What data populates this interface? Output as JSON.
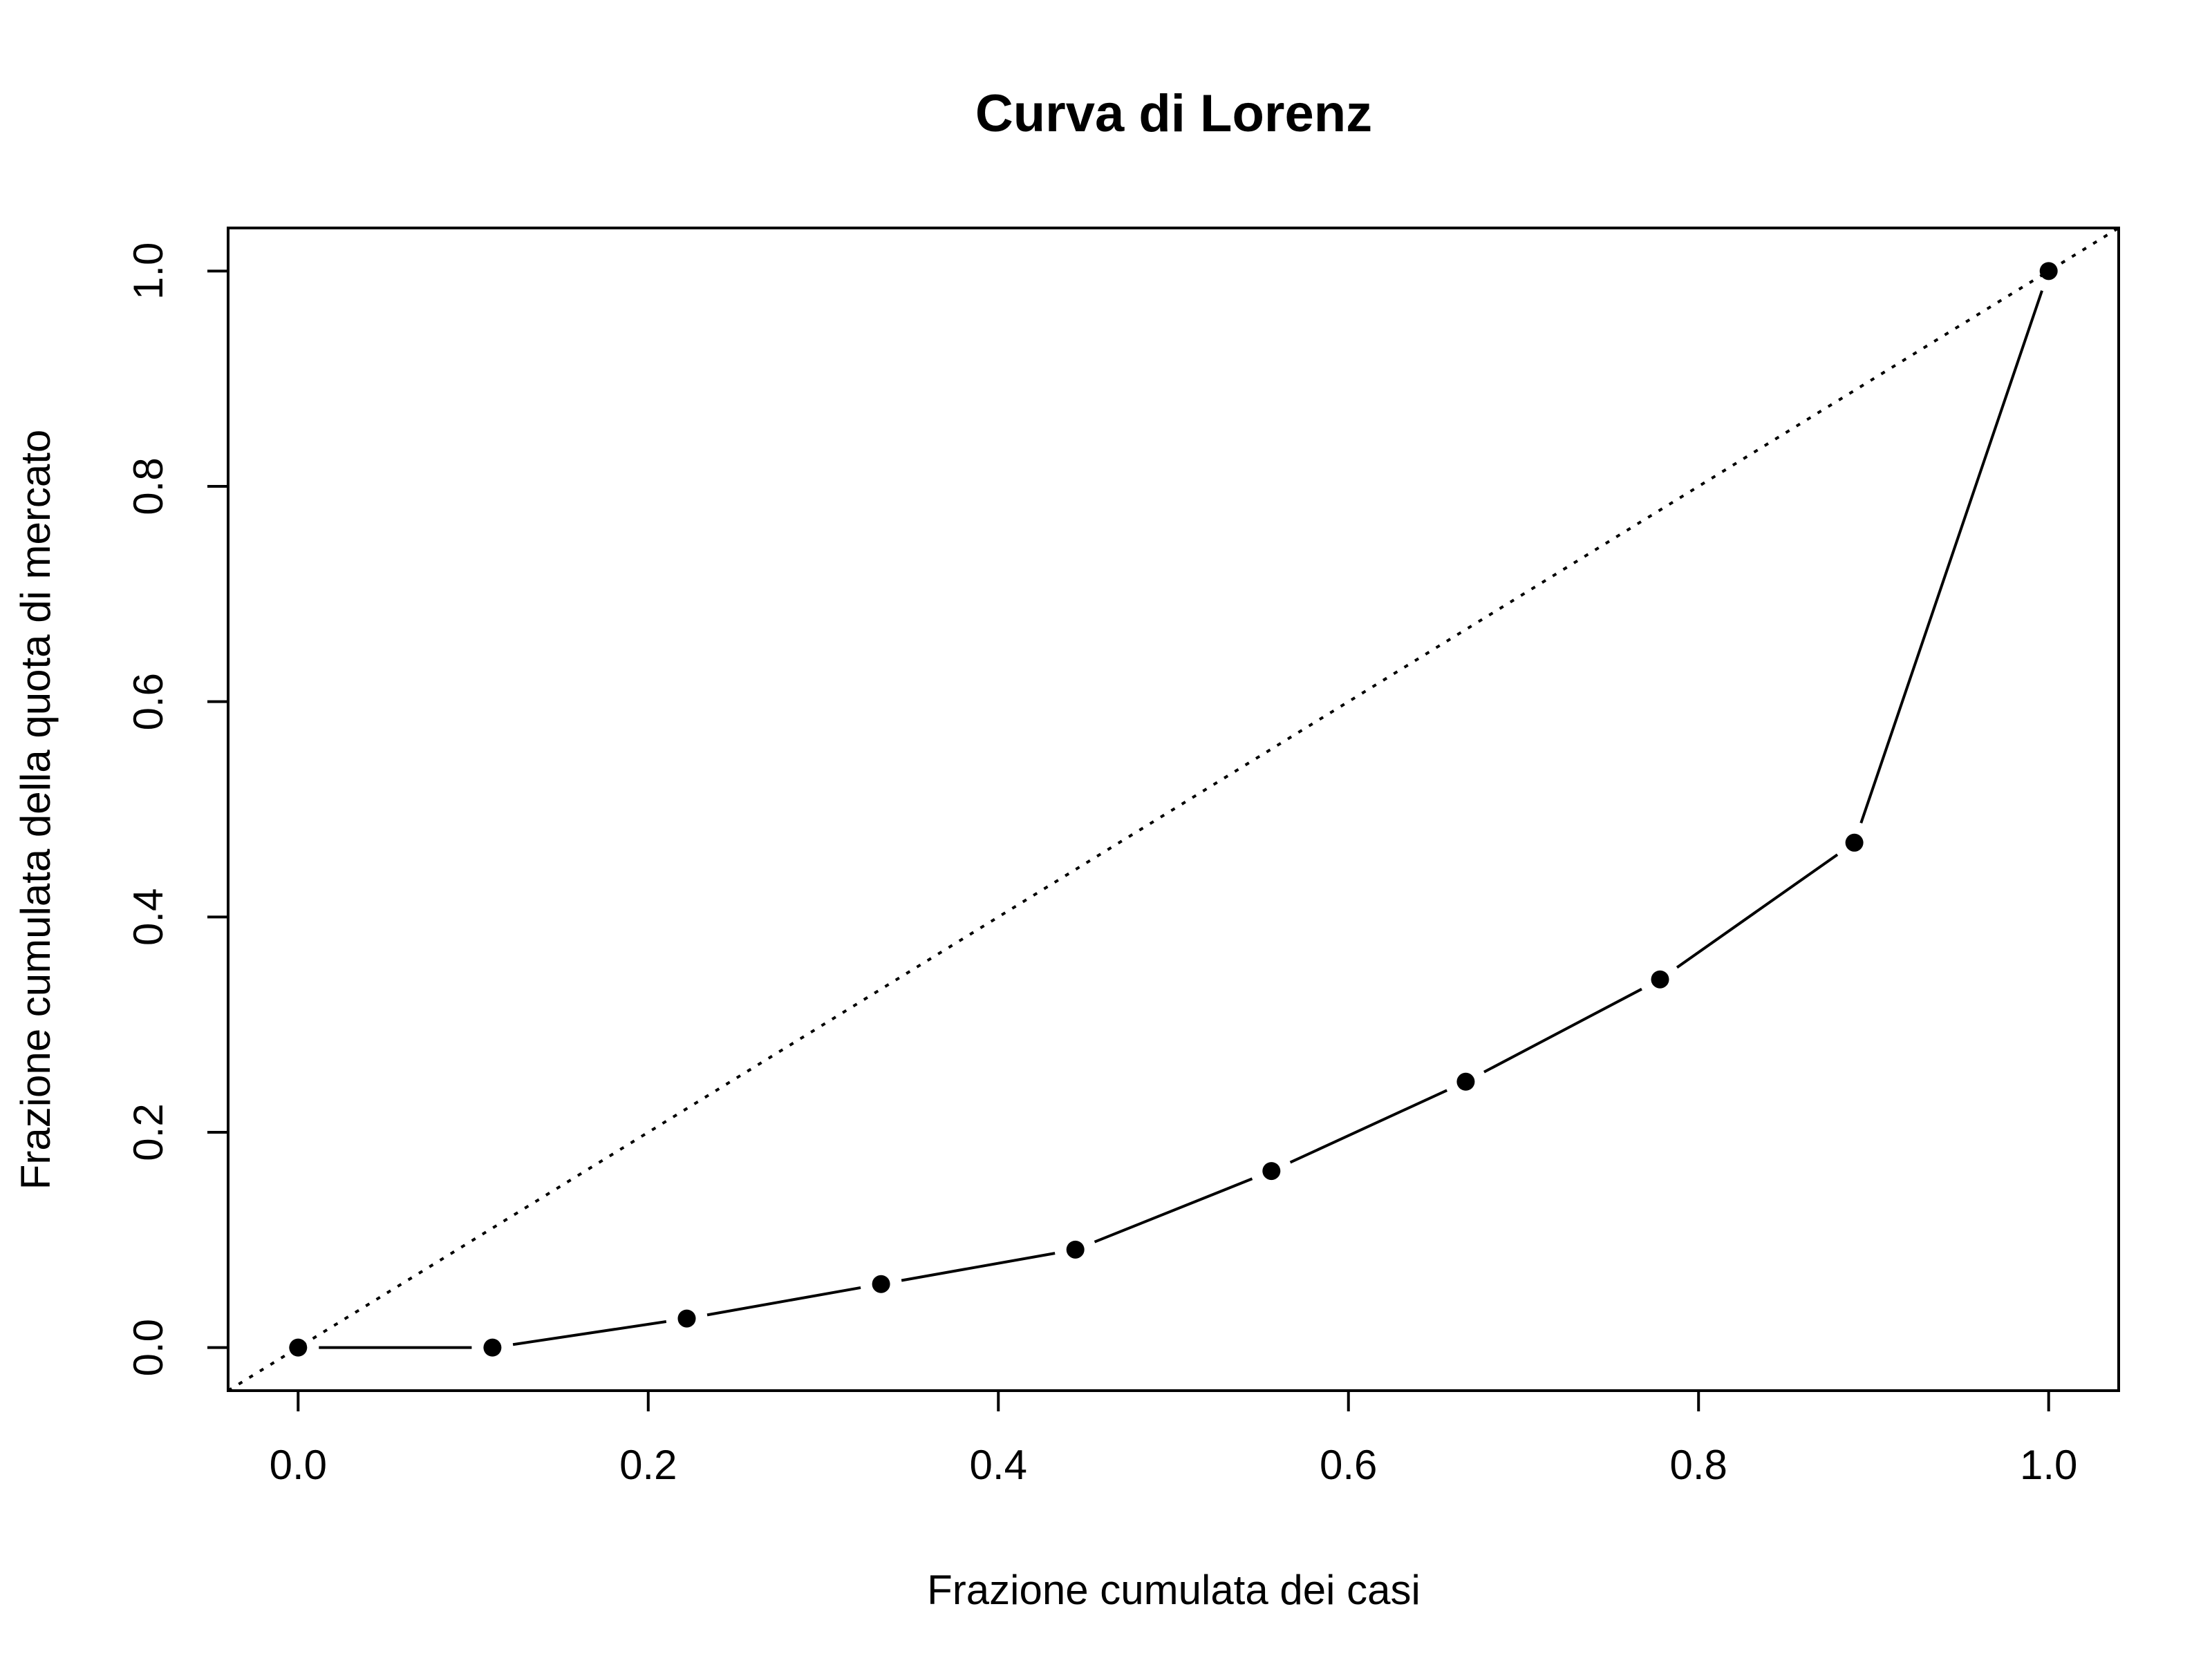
{
  "chart_data": {
    "type": "line",
    "title": "Curva di Lorenz",
    "xlabel": "Frazione cumulata dei casi",
    "ylabel": "Frazione cumulata della quota di mercato",
    "xlim": [
      -0.04,
      1.04
    ],
    "ylim": [
      -0.04,
      1.04
    ],
    "xticks": [
      0.0,
      0.2,
      0.4,
      0.6,
      0.8,
      1.0
    ],
    "xtick_labels": [
      "0.0",
      "0.2",
      "0.4",
      "0.6",
      "0.8",
      "1.0"
    ],
    "yticks": [
      0.0,
      0.2,
      0.4,
      0.6,
      0.8,
      1.0
    ],
    "ytick_labels": [
      "0.0",
      "0.2",
      "0.4",
      "0.6",
      "0.8",
      "1.0"
    ],
    "grid": false,
    "legend": "none",
    "series": [
      {
        "style": "points-and-lines",
        "color": "#000000",
        "x": [
          0.0,
          0.111,
          0.222,
          0.333,
          0.444,
          0.556,
          0.667,
          0.778,
          0.889,
          1.0
        ],
        "y": [
          0.0,
          0.0,
          0.027,
          0.059,
          0.091,
          0.164,
          0.247,
          0.342,
          0.469,
          1.0
        ]
      }
    ],
    "reference_line": {
      "style": "dotted",
      "color": "#000000",
      "from": [
        0,
        0
      ],
      "to": [
        1,
        1
      ]
    }
  }
}
